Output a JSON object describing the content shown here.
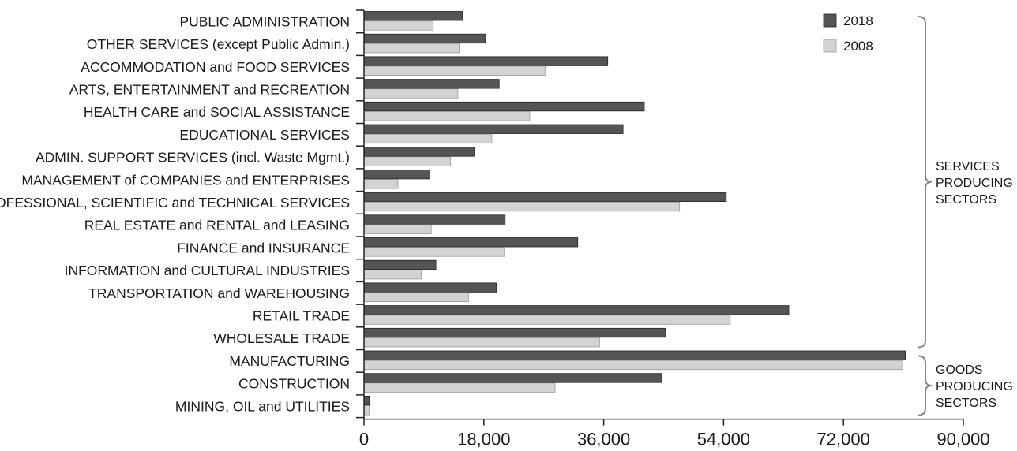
{
  "chart_data": {
    "type": "bar",
    "orientation": "horizontal",
    "categories": [
      "PUBLIC ADMINISTRATION",
      "OTHER SERVICES (except Public Admin.)",
      "ACCOMMODATION and FOOD SERVICES",
      "ARTS, ENTERTAINMENT and RECREATION",
      "HEALTH CARE and SOCIAL ASSISTANCE",
      "EDUCATIONAL SERVICES",
      "ADMIN. SUPPORT SERVICES (incl. Waste Mgmt.)",
      "MANAGEMENT of COMPANIES and ENTERPRISES",
      "PROFESSIONAL, SCIENTIFIC and TECHNICAL SERVICES",
      "REAL ESTATE and RENTAL and LEASING",
      "FINANCE and INSURANCE",
      "INFORMATION and CULTURAL INDUSTRIES",
      "TRANSPORTATION and WAREHOUSING",
      "RETAIL TRADE",
      "WHOLESALE TRADE",
      "MANUFACTURING",
      "CONSTRUCTION",
      "MINING, OIL and UTILITIES"
    ],
    "series": [
      {
        "name": "2018",
        "color": "#555555",
        "values": [
          14800,
          18200,
          36600,
          20300,
          42100,
          38900,
          16600,
          9900,
          54400,
          21200,
          32100,
          10800,
          19900,
          63800,
          45300,
          81300,
          44700,
          800
        ]
      },
      {
        "name": "2008",
        "color": "#d3d3d3",
        "values": [
          10400,
          14300,
          27200,
          14100,
          24900,
          19200,
          13000,
          5100,
          47400,
          10100,
          21100,
          8600,
          15700,
          55000,
          35400,
          80900,
          28700,
          800
        ]
      }
    ],
    "xlim": [
      0,
      90000
    ],
    "xticks": [
      "0",
      "18,000",
      "36,000",
      "54,000",
      "72,000",
      "90,000"
    ],
    "xtick_values": [
      0,
      18000,
      36000,
      54000,
      72000,
      90000
    ],
    "legend": [
      "2018",
      "2008"
    ],
    "legend_position": "top-right",
    "grid": false,
    "groups": [
      {
        "label_lines": [
          "SERVICES",
          "PRODUCING",
          "SECTORS"
        ],
        "from_category": 0,
        "to_category": 14
      },
      {
        "label_lines": [
          "GOODS",
          "PRODUCING",
          "SECTORS"
        ],
        "from_category": 15,
        "to_category": 17
      }
    ]
  }
}
